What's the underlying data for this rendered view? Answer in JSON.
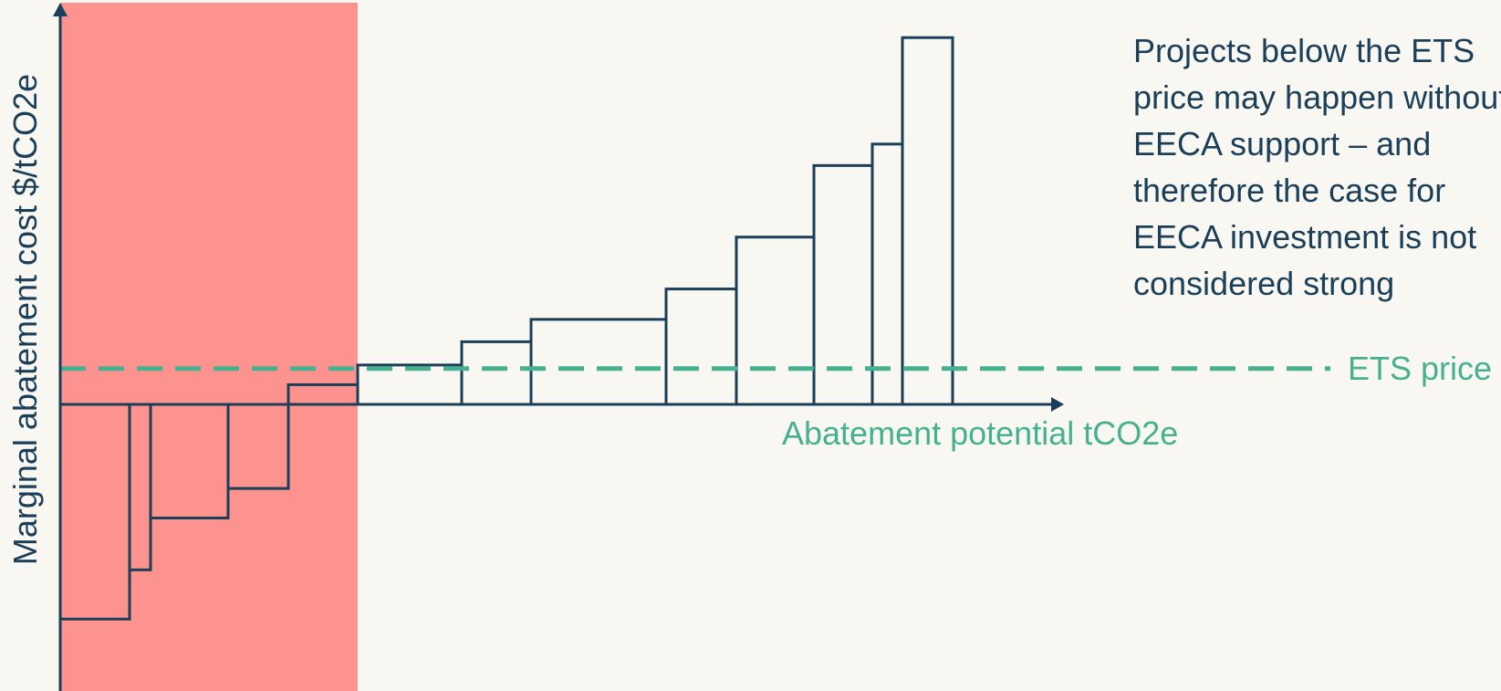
{
  "colors": {
    "background": "#f9f7f1",
    "highlight_region": "#fc938e",
    "bars_and_axes": "#1b3f58",
    "ets_price": "#46b190"
  },
  "annotation": "Projects below the ETS price may happen without EECA support – and therefore the case for EECA investment is not considered strong",
  "chart_data": {
    "type": "bar",
    "subtype": "marginal abatement cost curve (variable-width bars)",
    "xlabel": "Abatement potential tCO2e",
    "ylabel": "Marginal abatement cost $/tCO2e",
    "axis_ticks": "none",
    "x_extent": [
      0,
      1100
    ],
    "ylim": [
      -315,
      410
    ],
    "bars": [
      {
        "x0": 0,
        "width": 76,
        "value": -240
      },
      {
        "x0": 76,
        "width": 23,
        "value": -185
      },
      {
        "x0": 99,
        "width": 85,
        "value": -127
      },
      {
        "x0": 184,
        "width": 66,
        "value": -94
      },
      {
        "x0": 250,
        "width": 76,
        "value": 22
      },
      {
        "x0": 326,
        "width": 114,
        "value": 44
      },
      {
        "x0": 440,
        "width": 76,
        "value": 70
      },
      {
        "x0": 516,
        "width": 148,
        "value": 95
      },
      {
        "x0": 664,
        "width": 77,
        "value": 129
      },
      {
        "x0": 741,
        "width": 85,
        "value": 187
      },
      {
        "x0": 826,
        "width": 64,
        "value": 267
      },
      {
        "x0": 890,
        "width": 33,
        "value": 291
      },
      {
        "x0": 923,
        "width": 55,
        "value": 410
      }
    ],
    "reference_line": {
      "label": "ETS price",
      "value": 40,
      "style": "dashed"
    },
    "shaded_region": {
      "x0": 0,
      "x1": 326,
      "meaning": "projects below the ETS price"
    },
    "grid": false
  }
}
